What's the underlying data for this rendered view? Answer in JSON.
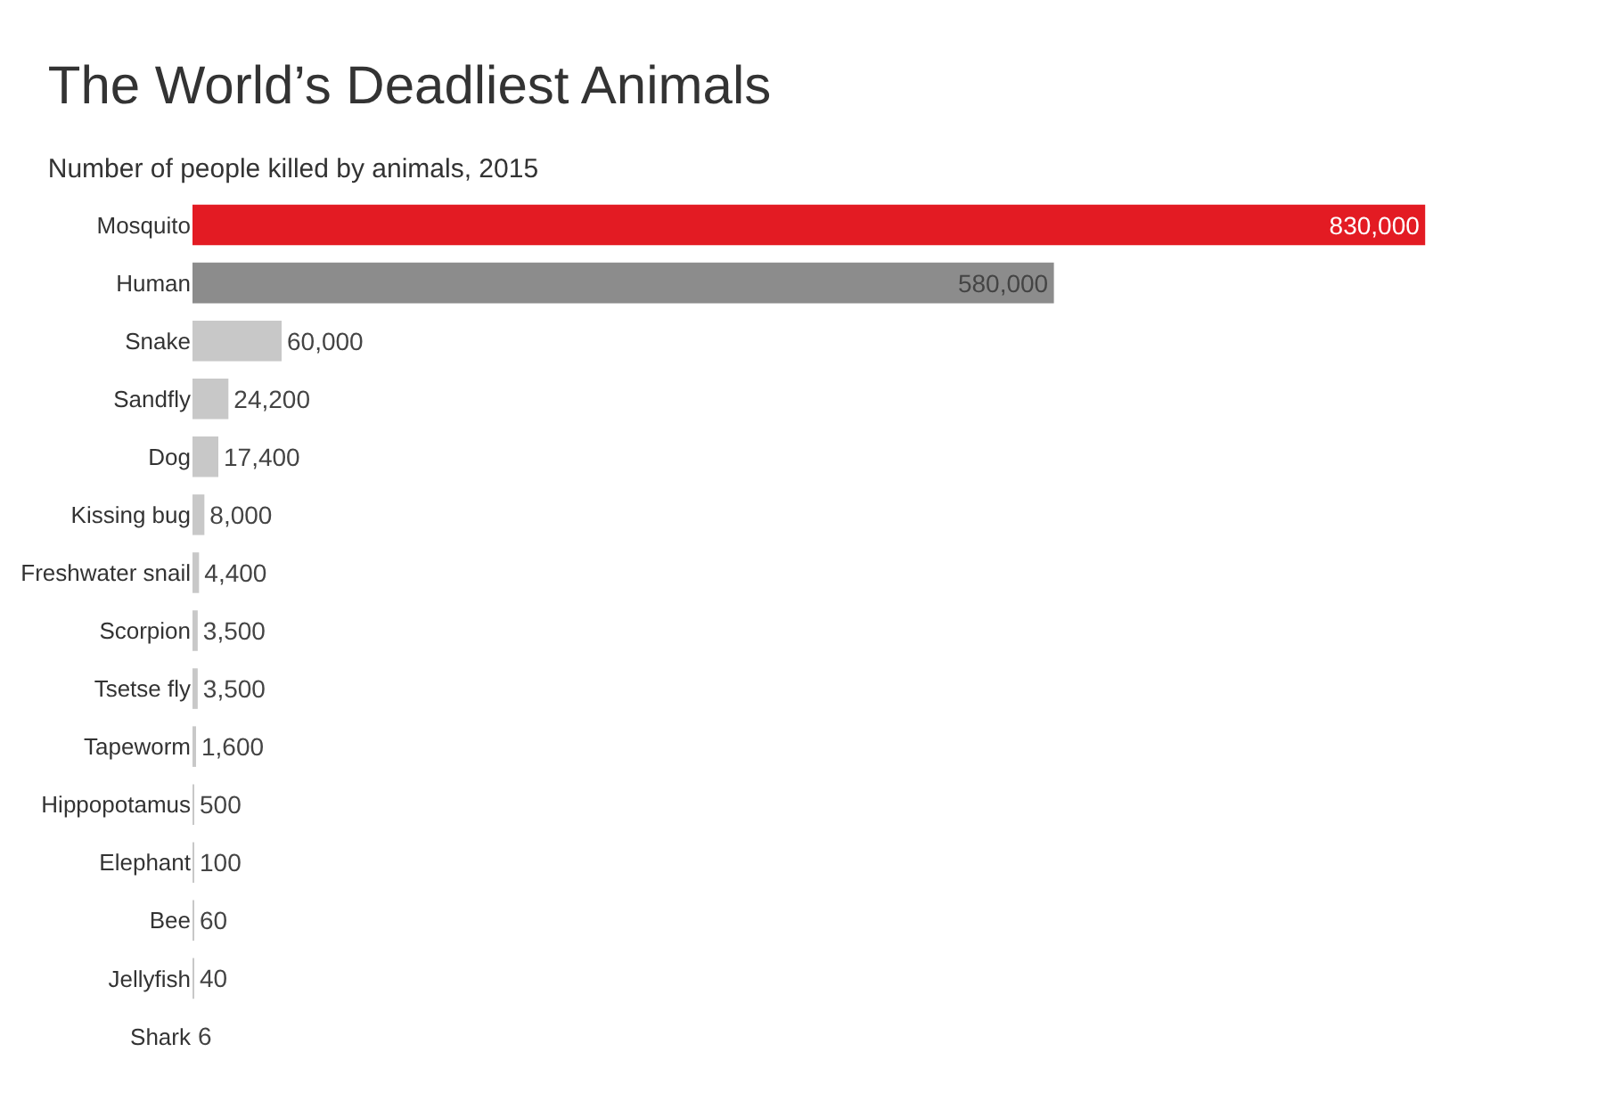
{
  "chart_data": {
    "type": "bar",
    "orientation": "horizontal",
    "title": "The World’s Deadliest Animals",
    "subtitle": "Number of people killed by animals, 2015",
    "categories": [
      "Mosquito",
      "Human",
      "Snake",
      "Sandfly",
      "Dog",
      "Kissing bug",
      "Freshwater snail",
      "Scorpion",
      "Tsetse fly",
      "Tapeworm",
      "Hippopotamus",
      "Elephant",
      "Bee",
      "Jellyfish",
      "Shark"
    ],
    "values": [
      830000,
      580000,
      60000,
      24200,
      17400,
      8000,
      4400,
      3500,
      3500,
      1600,
      500,
      100,
      60,
      40,
      6
    ],
    "value_labels": [
      "830,000",
      "580,000",
      "60,000",
      "24,200",
      "17,400",
      "8,000",
      "4,400",
      "3,500",
      "3,500",
      "1,600",
      "500",
      "100",
      "60",
      "40",
      "6"
    ],
    "colors": [
      "#e31b23",
      "#8c8c8c",
      "#c8c8c8",
      "#c8c8c8",
      "#c8c8c8",
      "#c8c8c8",
      "#c8c8c8",
      "#c8c8c8",
      "#c8c8c8",
      "#c8c8c8",
      "#c8c8c8",
      "#c8c8c8",
      "#c8c8c8",
      "#c8c8c8",
      "#c8c8c8"
    ],
    "tick_labels": "y"
  }
}
